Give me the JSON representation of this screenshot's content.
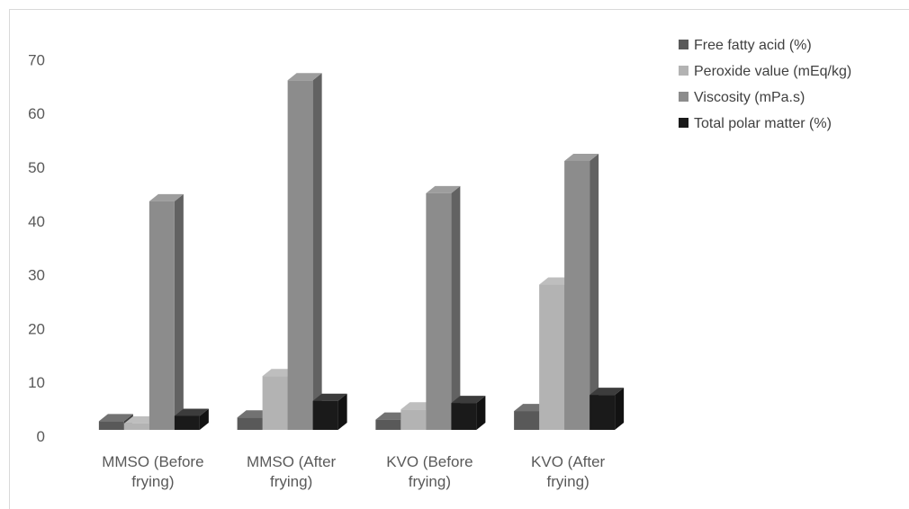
{
  "chart_data": {
    "type": "bar",
    "style": "3d-clustered-column",
    "categories": [
      [
        "MMSO (Before",
        "frying)"
      ],
      [
        "MMSO (After",
        "frying)"
      ],
      [
        "KVO (Before",
        "frying)"
      ],
      [
        "KVO (After",
        "frying)"
      ]
    ],
    "series": [
      {
        "name": "Free fatty acid (%)",
        "color": "#595959",
        "values": [
          1.6,
          2.3,
          1.9,
          3.5
        ]
      },
      {
        "name": "Peroxide value (mEq/kg)",
        "color": "#b3b3b3",
        "values": [
          1.2,
          10.0,
          3.8,
          27.0
        ]
      },
      {
        "name": "Viscosity (mPa.s)",
        "color": "#8c8c8c",
        "values": [
          42.5,
          65.0,
          44.0,
          50.0
        ]
      },
      {
        "name": "Total polar matter (%)",
        "color": "#1a1a1a",
        "values": [
          2.6,
          5.4,
          5.0,
          6.5
        ]
      }
    ],
    "ylim": [
      0,
      70
    ],
    "yticks": [
      0,
      10,
      20,
      30,
      40,
      50,
      60,
      70
    ],
    "legend_position": "right",
    "grid": false
  }
}
